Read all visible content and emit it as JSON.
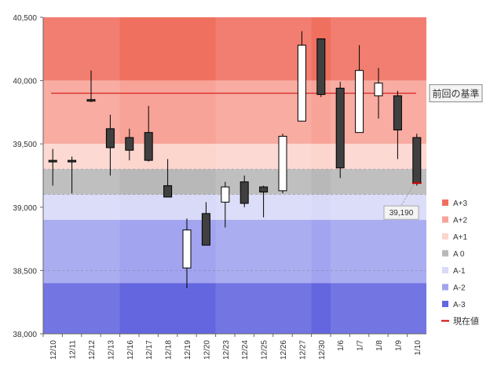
{
  "chart_data": {
    "type": "candlestick",
    "ylim": [
      38000,
      40500
    ],
    "y_ticks": [
      "40,500",
      "40,000",
      "39,500",
      "39,000",
      "38,500",
      "38,000"
    ],
    "y_tick_values": [
      40500,
      40000,
      39500,
      39000,
      38500,
      38000
    ],
    "categories": [
      "12/10",
      "12/11",
      "12/12",
      "12/13",
      "12/16",
      "12/17",
      "12/18",
      "12/19",
      "12/20",
      "12/23",
      "12/24",
      "12/25",
      "12/26",
      "12/27",
      "12/30",
      "1/6",
      "1/7",
      "1/8",
      "1/9",
      "1/10"
    ],
    "ohlc": [
      {
        "open": 39370,
        "high": 39460,
        "low": 39170,
        "close": 39370
      },
      {
        "open": 39370,
        "high": 39400,
        "low": 39110,
        "close": 39360
      },
      {
        "open": 39850,
        "high": 40080,
        "low": 39830,
        "close": 39840
      },
      {
        "open": 39620,
        "high": 39730,
        "low": 39250,
        "close": 39470
      },
      {
        "open": 39550,
        "high": 39620,
        "low": 39370,
        "close": 39450
      },
      {
        "open": 39590,
        "high": 39800,
        "low": 39360,
        "close": 39370
      },
      {
        "open": 39170,
        "high": 39380,
        "low": 39080,
        "close": 39080
      },
      {
        "open": 38520,
        "high": 38910,
        "low": 38360,
        "close": 38820
      },
      {
        "open": 38950,
        "high": 39040,
        "low": 38700,
        "close": 38700
      },
      {
        "open": 39040,
        "high": 39200,
        "low": 38840,
        "close": 39160
      },
      {
        "open": 39200,
        "high": 39250,
        "low": 39000,
        "close": 39030
      },
      {
        "open": 39160,
        "high": 39170,
        "low": 38920,
        "close": 39120
      },
      {
        "open": 39130,
        "high": 39580,
        "low": 39110,
        "close": 39560
      },
      {
        "open": 39680,
        "high": 40390,
        "low": 39680,
        "close": 40280
      },
      {
        "open": 40330,
        "high": 40330,
        "low": 39870,
        "close": 39890
      },
      {
        "open": 39940,
        "high": 39990,
        "low": 39230,
        "close": 39310
      },
      {
        "open": 39590,
        "high": 40280,
        "low": 39590,
        "close": 40080
      },
      {
        "open": 39880,
        "high": 40100,
        "low": 39700,
        "close": 39980
      },
      {
        "open": 39880,
        "high": 39920,
        "low": 39380,
        "close": 39610
      },
      {
        "open": 39550,
        "high": 39580,
        "low": 39170,
        "close": 39190
      }
    ],
    "colors": {
      "up": "#ffffff",
      "down": "#404040",
      "outline": "#000000"
    },
    "bands": [
      {
        "label": "A+3",
        "from": 40000,
        "to": 40500,
        "color": "#f07060"
      },
      {
        "label": "A+2",
        "from": 39500,
        "to": 40000,
        "color": "#f8a398"
      },
      {
        "label": "A+1",
        "from": 39300,
        "to": 39500,
        "color": "#fcd5cd"
      },
      {
        "label": "A 0",
        "from": 39100,
        "to": 39300,
        "color": "#b8b8b8"
      },
      {
        "label": "A-1",
        "from": 38900,
        "to": 39100,
        "color": "#d8daf8"
      },
      {
        "label": "A-2",
        "from": 38400,
        "to": 38900,
        "color": "#a2a4f0"
      },
      {
        "label": "A-3",
        "from": 38000,
        "to": 38400,
        "color": "#6466e0"
      }
    ],
    "current_value_label": "現在値",
    "current_value_color": "#d00000",
    "reference_line": {
      "label": "前回の基準",
      "value": 39900,
      "color": "#d00000"
    },
    "callout": {
      "label": "39,190",
      "value": 39190
    },
    "dashed_lines": [
      39300,
      39100,
      38500
    ],
    "legend_position": "right",
    "grid": false
  }
}
